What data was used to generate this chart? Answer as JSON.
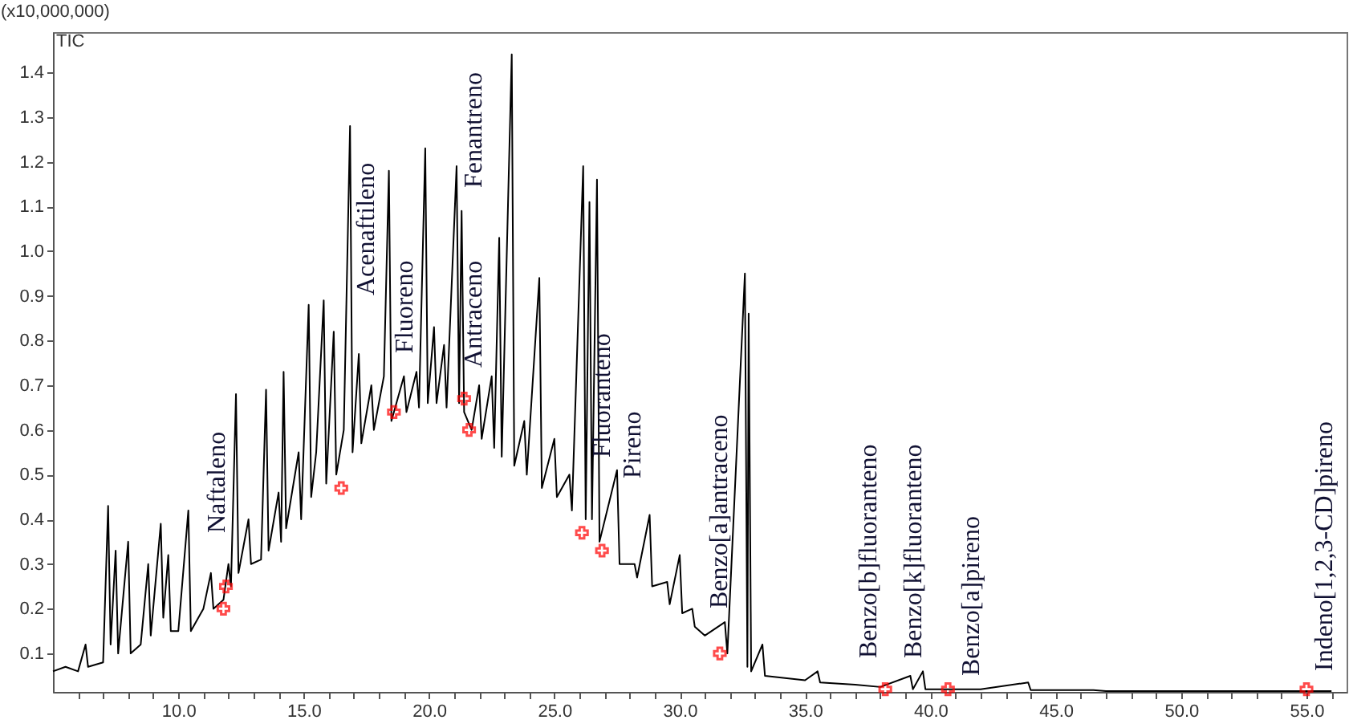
{
  "chart_data": {
    "type": "line",
    "ylabel": "(x10,000,000)",
    "xlim": [
      5,
      56.6
    ],
    "ylim": [
      0.014,
      1.49
    ],
    "xticks": [
      {
        "value": 6,
        "label": null
      },
      {
        "value": 7,
        "label": null
      },
      {
        "value": 8,
        "label": null
      },
      {
        "value": 9,
        "label": null
      },
      {
        "value": 10,
        "label": "10.0"
      },
      {
        "value": 11,
        "label": null
      },
      {
        "value": 12,
        "label": null
      },
      {
        "value": 13,
        "label": null
      },
      {
        "value": 14,
        "label": null
      },
      {
        "value": 15,
        "label": "15.0"
      },
      {
        "value": 16,
        "label": null
      },
      {
        "value": 17,
        "label": null
      },
      {
        "value": 18,
        "label": null
      },
      {
        "value": 19,
        "label": null
      },
      {
        "value": 20,
        "label": "20.0"
      },
      {
        "value": 21,
        "label": null
      },
      {
        "value": 22,
        "label": null
      },
      {
        "value": 23,
        "label": null
      },
      {
        "value": 24,
        "label": null
      },
      {
        "value": 25,
        "label": "25.0"
      },
      {
        "value": 26,
        "label": null
      },
      {
        "value": 27,
        "label": null
      },
      {
        "value": 28,
        "label": null
      },
      {
        "value": 29,
        "label": null
      },
      {
        "value": 30,
        "label": "30.0"
      },
      {
        "value": 31,
        "label": null
      },
      {
        "value": 32,
        "label": null
      },
      {
        "value": 33,
        "label": null
      },
      {
        "value": 34,
        "label": null
      },
      {
        "value": 35,
        "label": "35.0"
      },
      {
        "value": 36,
        "label": null
      },
      {
        "value": 37,
        "label": null
      },
      {
        "value": 38,
        "label": null
      },
      {
        "value": 39,
        "label": null
      },
      {
        "value": 40,
        "label": "40.0"
      },
      {
        "value": 41,
        "label": null
      },
      {
        "value": 42,
        "label": null
      },
      {
        "value": 43,
        "label": null
      },
      {
        "value": 44,
        "label": null
      },
      {
        "value": 45,
        "label": "45.0"
      },
      {
        "value": 46,
        "label": null
      },
      {
        "value": 47,
        "label": null
      },
      {
        "value": 48,
        "label": null
      },
      {
        "value": 49,
        "label": null
      },
      {
        "value": 50,
        "label": "50.0"
      },
      {
        "value": 51,
        "label": null
      },
      {
        "value": 52,
        "label": null
      },
      {
        "value": 53,
        "label": null
      },
      {
        "value": 54,
        "label": null
      },
      {
        "value": 55,
        "label": "55.0"
      },
      {
        "value": 56,
        "label": null
      }
    ],
    "yticks": [
      0.1,
      0.2,
      0.3,
      0.4,
      0.5,
      0.6,
      0.7,
      0.8,
      0.9,
      {
        "value": 1,
        "label": "1.0"
      },
      1.1,
      1.2,
      1.3,
      1.4
    ],
    "series": [
      {
        "color": "#000000",
        "x": [
          5.0,
          5.5,
          6.0,
          6.3,
          6.4,
          7.0,
          7.2,
          7.3,
          7.5,
          7.6,
          8.0,
          8.1,
          8.5,
          8.8,
          8.9,
          9.3,
          9.4,
          9.6,
          9.7,
          10.0,
          10.4,
          10.5,
          11.0,
          11.3,
          11.4,
          11.8,
          12.0,
          12.1,
          12.3,
          12.4,
          12.8,
          12.9,
          13.3,
          13.5,
          13.6,
          14.0,
          14.1,
          14.2,
          14.3,
          14.8,
          14.9,
          15.2,
          15.3,
          15.5,
          15.8,
          15.9,
          16.2,
          16.3,
          16.6,
          16.85,
          16.95,
          17.2,
          17.3,
          17.7,
          17.8,
          18.2,
          18.4,
          18.5,
          19.0,
          19.1,
          19.5,
          19.6,
          19.85,
          19.95,
          20.2,
          20.3,
          20.6,
          20.7,
          21.1,
          21.2,
          21.3,
          21.4,
          21.7,
          22.0,
          22.1,
          22.5,
          22.6,
          22.8,
          22.9,
          23.3,
          23.4,
          23.8,
          23.9,
          24.4,
          24.5,
          25.0,
          25.1,
          25.6,
          25.7,
          26.15,
          26.25,
          26.4,
          26.5,
          26.7,
          26.8,
          27.5,
          27.6,
          28.2,
          28.3,
          28.8,
          28.9,
          29.5,
          29.6,
          30.0,
          30.1,
          30.5,
          30.6,
          31.0,
          31.8,
          31.9,
          32.6,
          32.7,
          32.75,
          32.85,
          33.3,
          33.4,
          35.0,
          35.5,
          35.6,
          37.0,
          38.0,
          39.2,
          39.3,
          39.7,
          39.8,
          42.0,
          43.9,
          44.0,
          46.5,
          47.0,
          55.0,
          56.0
        ],
        "values": [
          0.06,
          0.07,
          0.06,
          0.12,
          0.07,
          0.08,
          0.43,
          0.12,
          0.33,
          0.1,
          0.35,
          0.1,
          0.12,
          0.3,
          0.14,
          0.39,
          0.18,
          0.32,
          0.15,
          0.15,
          0.42,
          0.15,
          0.2,
          0.28,
          0.2,
          0.22,
          0.3,
          0.25,
          0.68,
          0.28,
          0.4,
          0.3,
          0.31,
          0.69,
          0.33,
          0.46,
          0.35,
          0.73,
          0.38,
          0.55,
          0.4,
          0.88,
          0.45,
          0.55,
          0.89,
          0.48,
          0.82,
          0.5,
          0.6,
          1.28,
          0.55,
          0.77,
          0.57,
          0.7,
          0.6,
          0.72,
          1.18,
          0.62,
          0.72,
          0.64,
          0.73,
          0.65,
          1.23,
          0.66,
          0.83,
          0.66,
          0.79,
          0.65,
          1.19,
          0.66,
          1.09,
          0.64,
          0.6,
          0.7,
          0.58,
          0.72,
          0.56,
          1.03,
          0.54,
          1.44,
          0.52,
          0.62,
          0.5,
          0.94,
          0.47,
          0.58,
          0.45,
          0.5,
          0.42,
          1.19,
          0.4,
          1.11,
          0.4,
          1.16,
          0.35,
          0.51,
          0.3,
          0.3,
          0.27,
          0.41,
          0.25,
          0.26,
          0.21,
          0.32,
          0.19,
          0.2,
          0.16,
          0.14,
          0.17,
          0.1,
          0.95,
          0.07,
          0.86,
          0.06,
          0.12,
          0.05,
          0.04,
          0.06,
          0.035,
          0.03,
          0.025,
          0.05,
          0.02,
          0.06,
          0.02,
          0.02,
          0.035,
          0.018,
          0.018,
          0.016,
          0.016,
          0.016
        ]
      },
      {
        "type": "scatter",
        "color": "#ff0000",
        "marker": "cross",
        "x": [
          11.8,
          11.9,
          16.5,
          18.6,
          21.4,
          21.6,
          26.1,
          26.9,
          31.6,
          38.2,
          40.7,
          55.0
        ],
        "values": [
          0.2,
          0.25,
          0.47,
          0.64,
          0.67,
          0.6,
          0.37,
          0.33,
          0.1,
          0.02,
          0.02,
          0.02
        ]
      }
    ],
    "annotations": [
      "TIC",
      "Naftaleno",
      "Acenaftileno",
      "Fluoreno",
      "Fenantreno",
      "Antraceno",
      "Fluoranteno",
      "Pireno",
      "Benzo[a]antraceno",
      "Benzo[b]fluoranteno",
      "Benzo[k]fluoranteno",
      "Benzo[a]pireno",
      "Indeno[1,2,3-CD]pireno"
    ]
  }
}
